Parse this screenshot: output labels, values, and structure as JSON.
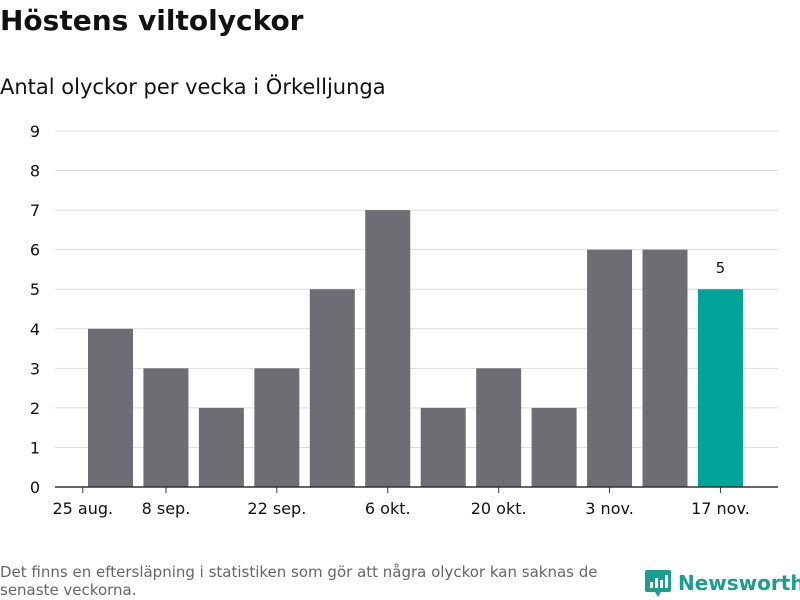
{
  "title": "Höstens viltolyckor",
  "subtitle": "Antal olyckor per vecka i Örkelljunga",
  "footnote": "Det finns en eftersläpning i statistiken som gör att några olyckor kan saknas de senaste veckorna.",
  "brand": {
    "name": "Newsworthy",
    "icon": "newsworthy-logo-icon"
  },
  "colors": {
    "bar": "#6e6d73",
    "highlight": "#00a398",
    "grid": "#dddddd",
    "axis": "#333333",
    "text": "#111111",
    "footnote": "#666666",
    "brand": "#1d9d8f"
  },
  "chart_data": {
    "type": "bar",
    "title": "Höstens viltolyckor",
    "subtitle": "Antal olyckor per vecka i Örkelljunga",
    "xlabel": "",
    "ylabel": "",
    "ylim": [
      0,
      9
    ],
    "yticks": [
      0,
      1,
      2,
      3,
      4,
      5,
      6,
      7,
      8,
      9
    ],
    "grid": true,
    "x_tick_labels": [
      "25 aug.",
      "8 sep.",
      "22 sep.",
      "6 okt.",
      "20 okt.",
      "3 nov.",
      "17 nov."
    ],
    "x_tick_bar_index": [
      -0.5,
      1,
      3,
      5,
      7,
      9,
      11
    ],
    "values": [
      4,
      3,
      2,
      3,
      5,
      7,
      2,
      3,
      2,
      6,
      6,
      5
    ],
    "highlight_index": 11,
    "data_labels": [
      {
        "index": 11,
        "text": "5"
      }
    ]
  }
}
